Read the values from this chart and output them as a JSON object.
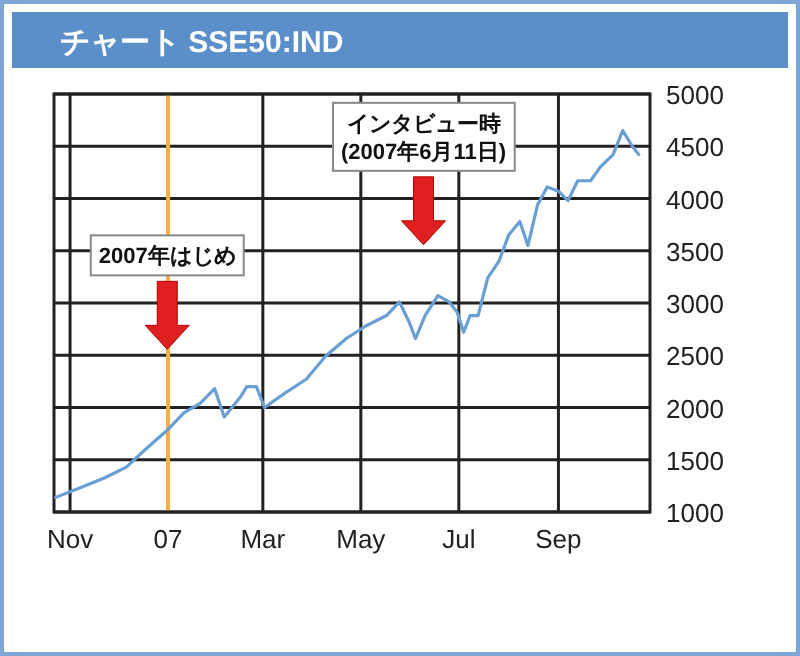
{
  "chart_data": {
    "type": "line",
    "title": "チャート SSE50:IND",
    "x": [
      "2006-10-23",
      "2006-11-07",
      "2006-11-23",
      "2006-12-06",
      "2006-12-18",
      "2007-01-01",
      "2007-01-11",
      "2007-01-21",
      "2007-01-30",
      "2007-02-05",
      "2007-02-15",
      "2007-02-19",
      "2007-02-25",
      "2007-03-02",
      "2007-03-15",
      "2007-03-28",
      "2007-04-09",
      "2007-04-22",
      "2007-05-04",
      "2007-05-17",
      "2007-05-25",
      "2007-05-31",
      "2007-06-04",
      "2007-06-10",
      "2007-06-18",
      "2007-06-25",
      "2007-06-30",
      "2007-07-04",
      "2007-07-08",
      "2007-07-13",
      "2007-07-19",
      "2007-07-26",
      "2007-08-01",
      "2007-08-08",
      "2007-08-13",
      "2007-08-19",
      "2007-08-25",
      "2007-09-01",
      "2007-09-07",
      "2007-09-13",
      "2007-09-21",
      "2007-09-27",
      "2007-10-05",
      "2007-10-11",
      "2007-10-17",
      "2007-10-21"
    ],
    "series": [
      {
        "color": "#6a9fd4",
        "values": [
          1140,
          1230,
          1330,
          1430,
          1600,
          1790,
          1950,
          2040,
          2180,
          1910,
          2100,
          2200,
          2200,
          2000,
          2140,
          2270,
          2490,
          2660,
          2780,
          2880,
          3010,
          2820,
          2660,
          2880,
          3070,
          3010,
          2910,
          2720,
          2880,
          2880,
          3240,
          3400,
          3650,
          3780,
          3550,
          3940,
          4110,
          4070,
          3980,
          4170,
          4170,
          4300,
          4420,
          4650,
          4500,
          4420
        ]
      }
    ],
    "xlim": [
      "2006-10-22",
      "2007-10-28"
    ],
    "xticks": [
      {
        "value": "2006-11-01",
        "label": "Nov"
      },
      {
        "value": "2007-01-01",
        "label": "07"
      },
      {
        "value": "2007-03-01",
        "label": "Mar"
      },
      {
        "value": "2007-05-01",
        "label": "May"
      },
      {
        "value": "2007-07-01",
        "label": "Jul"
      },
      {
        "value": "2007-09-01",
        "label": "Sep"
      }
    ],
    "ylim": [
      1000,
      5000
    ],
    "yticks": [
      1000,
      1500,
      2000,
      2500,
      3000,
      3500,
      4000,
      4500,
      5000
    ],
    "grid": true,
    "ref_lines": [
      {
        "axis": "x",
        "value": "2007-01-01",
        "color": "#f5b041"
      }
    ],
    "annotations": [
      "2007年はじめ",
      "インタビュー時\n(2007年6月11日)"
    ]
  }
}
